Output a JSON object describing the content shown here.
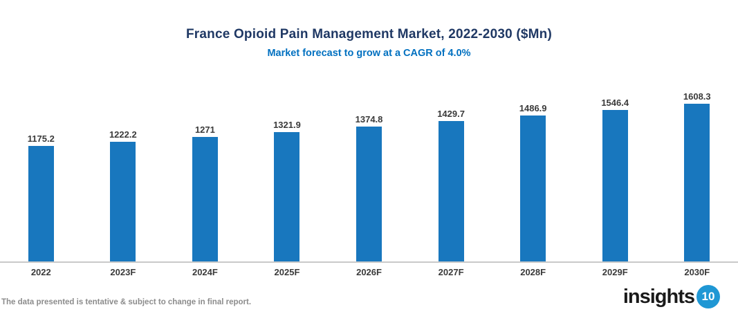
{
  "header": {
    "title": "France Opioid Pain Management Market, 2022-2030 ($Mn)",
    "subtitle": "Market forecast to grow at a CAGR of 4.0%"
  },
  "chart_data": {
    "type": "bar",
    "categories": [
      "2022",
      "2023F",
      "2024F",
      "2025F",
      "2026F",
      "2027F",
      "2028F",
      "2029F",
      "2030F"
    ],
    "values": [
      1175.2,
      1222.2,
      1271,
      1321.9,
      1374.8,
      1429.7,
      1486.9,
      1546.4,
      1608.3
    ],
    "title": "France Opioid Pain Management Market, 2022-2030 ($Mn)",
    "subtitle": "Market forecast to grow at a CAGR of 4.0%",
    "xlabel": "",
    "ylabel": "",
    "ylim": [
      0,
      1700
    ],
    "grid": false,
    "legend": "none",
    "data_labels": true,
    "bar_color": "#1877BE"
  },
  "footer": {
    "disclaimer": "The data presented is tentative & subject to change in final report.",
    "logo_text": "insights",
    "logo_badge": "10"
  },
  "colors": {
    "title": "#1F3864",
    "subtitle": "#0070C0",
    "bar": "#1877BE",
    "axis_line": "#C9C9C9",
    "labels": "#3A3A3A",
    "disclaimer": "#8C8C8C",
    "logo_badge": "#1F97D4"
  }
}
